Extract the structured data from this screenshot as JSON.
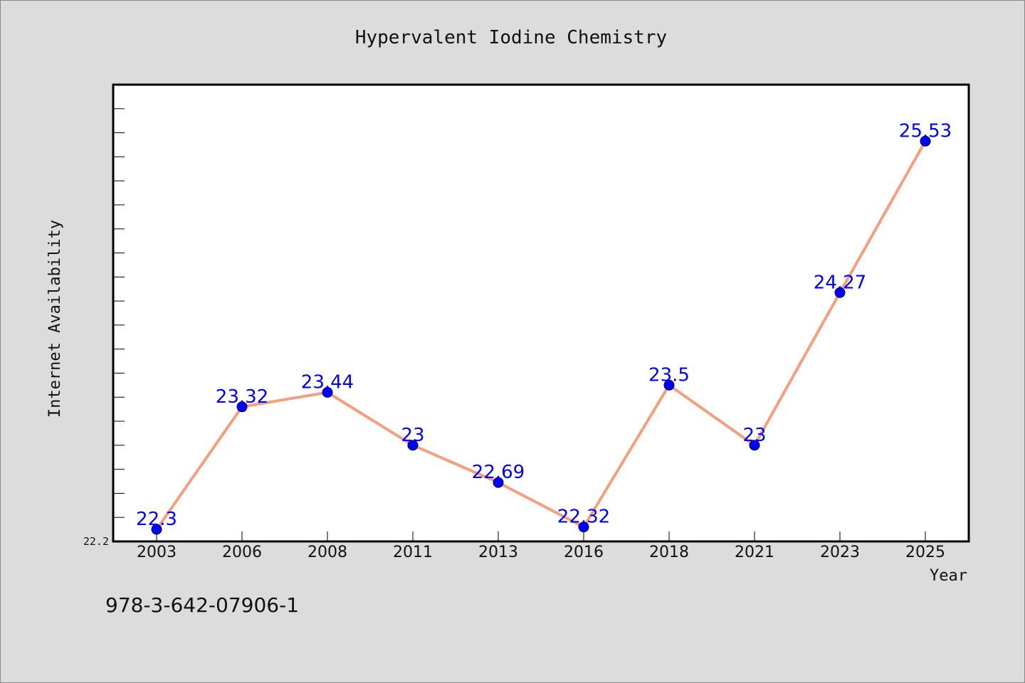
{
  "chart_data": {
    "type": "line",
    "title": "Hypervalent Iodine Chemistry",
    "xlabel": "Year",
    "ylabel": "Internet Availability",
    "categories": [
      "2003",
      "2006",
      "2008",
      "2011",
      "2013",
      "2016",
      "2018",
      "2021",
      "2023",
      "2025"
    ],
    "series": [
      {
        "values": [
          22.3,
          23.32,
          23.44,
          23.0,
          22.69,
          22.32,
          23.5,
          23.0,
          24.27,
          25.53
        ]
      }
    ],
    "data_labels": [
      "22.3",
      "23.32",
      "23.44",
      "23",
      "22.69",
      "22.32",
      "23.5",
      "23",
      "24.27",
      "25.53"
    ],
    "ylim": [
      22.2,
      26.0
    ],
    "y_tick_label": "22.2",
    "grid": false,
    "legend": "none",
    "line_color": "#f4a07f",
    "marker_color": "#0000ff",
    "label_color": "#0000ff",
    "plot_background": "#ffffff",
    "page_background": "#dcdcdc"
  },
  "footer": {
    "isbn": "978-3-642-07906-1"
  }
}
